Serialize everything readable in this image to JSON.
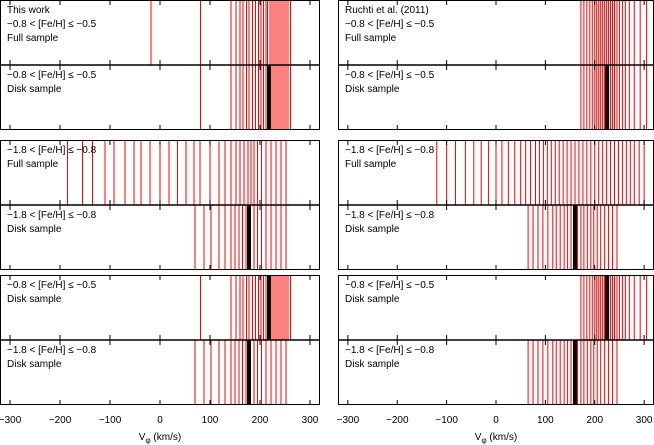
{
  "colors": {
    "obs_line": "#ff0000",
    "mean_line": "#000000",
    "frame": "#000000"
  },
  "x_ticks": [
    -300,
    -200,
    -100,
    0,
    100,
    200,
    300
  ],
  "x_axis_label_main": "V",
  "x_axis_label_sub": "φ",
  "x_axis_label_unit": " (km/s)",
  "chart_data": [
    {
      "type": "rug",
      "column": "left",
      "row": 1,
      "xlim": [
        -320,
        320
      ],
      "texts": [
        "This work",
        "−0.8 < [Fe/H] ≤ −0.5",
        "Full sample"
      ],
      "mean": null,
      "values": [
        -18,
        81,
        142,
        152,
        160,
        166,
        173,
        178,
        185,
        191,
        197,
        202,
        207,
        212,
        215,
        220,
        224,
        228,
        232,
        236,
        240,
        244,
        248,
        252,
        256,
        261
      ]
    },
    {
      "type": "rug",
      "column": "left",
      "row": 2,
      "xlim": [
        -320,
        320
      ],
      "texts": [
        "−0.8 < [Fe/H] ≤ −0.5",
        "Disk sample"
      ],
      "mean": 218,
      "values": [
        81,
        142,
        152,
        160,
        166,
        173,
        178,
        185,
        191,
        197,
        202,
        207,
        212,
        215,
        220,
        224,
        228,
        232,
        236,
        240,
        244,
        248,
        252,
        256,
        261
      ]
    },
    {
      "type": "rug",
      "column": "left",
      "row": 3,
      "xlim": [
        -320,
        320
      ],
      "texts": [
        "−1.8 < [Fe/H] ≤ −0.8",
        "Full sample"
      ],
      "mean": null,
      "values": [
        -185,
        -155,
        -135,
        -110,
        -92,
        -70,
        -52,
        -38,
        -20,
        0,
        18,
        35,
        52,
        68,
        80,
        100,
        118,
        130,
        142,
        152,
        160,
        168,
        176,
        182,
        188,
        195,
        203,
        212,
        222,
        232,
        242,
        252
      ]
    },
    {
      "type": "rug",
      "column": "left",
      "row": 4,
      "xlim": [
        -320,
        320
      ],
      "texts": [
        "−1.8 < [Fe/H] ≤ −0.8",
        "Disk sample"
      ],
      "mean": 178,
      "values": [
        70,
        88,
        102,
        118,
        130,
        142,
        150,
        158,
        165,
        172,
        180,
        188,
        195,
        203,
        212,
        222,
        232,
        242,
        252
      ]
    },
    {
      "type": "rug",
      "column": "left",
      "row": 5,
      "xlim": [
        -320,
        320
      ],
      "texts": [
        "−0.8 < [Fe/H] ≤ −0.5",
        "Disk sample"
      ],
      "mean": 218,
      "values": [
        81,
        142,
        152,
        160,
        166,
        173,
        178,
        185,
        191,
        197,
        202,
        207,
        212,
        215,
        220,
        224,
        228,
        232,
        236,
        240,
        244,
        248,
        252,
        256,
        261
      ]
    },
    {
      "type": "rug",
      "column": "left",
      "row": 6,
      "xlim": [
        -320,
        320
      ],
      "texts": [
        "−1.8 < [Fe/H] ≤ −0.8",
        "Disk sample"
      ],
      "mean": 178,
      "values": [
        70,
        88,
        102,
        118,
        130,
        142,
        150,
        158,
        165,
        172,
        180,
        188,
        195,
        203,
        212,
        222,
        232,
        242,
        252
      ]
    },
    {
      "type": "rug",
      "column": "right",
      "row": 1,
      "xlim": [
        -320,
        320
      ],
      "texts": [
        "Ruchti et al. (2011)",
        "−0.8 < [Fe/H] ≤ −0.5",
        "Full sample"
      ],
      "mean": null,
      "values": [
        172,
        178,
        184,
        190,
        195,
        200,
        204,
        208,
        212,
        216,
        220,
        224,
        228,
        232,
        236,
        240,
        245,
        250,
        256,
        262,
        270,
        280,
        292,
        305
      ]
    },
    {
      "type": "rug",
      "column": "right",
      "row": 2,
      "xlim": [
        -320,
        320
      ],
      "texts": [
        "−0.8 < [Fe/H] ≤ −0.5",
        "Disk sample"
      ],
      "mean": 225,
      "values": [
        172,
        178,
        184,
        190,
        195,
        200,
        204,
        208,
        212,
        216,
        220,
        224,
        228,
        232,
        236,
        240,
        245,
        250,
        256,
        262,
        270,
        280,
        292,
        305
      ]
    },
    {
      "type": "rug",
      "column": "right",
      "row": 3,
      "xlim": [
        -320,
        320
      ],
      "texts": [
        "−1.8 < [Fe/H] ≤ −0.8",
        "Full sample"
      ],
      "mean": null,
      "values": [
        -120,
        -100,
        -82,
        -62,
        -45,
        -30,
        -15,
        0,
        12,
        25,
        38,
        50,
        60,
        70,
        80,
        88,
        96,
        104,
        112,
        120,
        128,
        136,
        144,
        152,
        160,
        168,
        176,
        184,
        192,
        200,
        208,
        216,
        224,
        232,
        240,
        248,
        256,
        264,
        272,
        280,
        290,
        300
      ]
    },
    {
      "type": "rug",
      "column": "right",
      "row": 4,
      "xlim": [
        -320,
        320
      ],
      "texts": [
        "−1.8 < [Fe/H] ≤ −0.8",
        "Disk sample"
      ],
      "mean": 160,
      "values": [
        65,
        75,
        85,
        95,
        105,
        115,
        122,
        130,
        138,
        145,
        152,
        158,
        165,
        172,
        178,
        185,
        192,
        198,
        205,
        212,
        220,
        228,
        236,
        245
      ]
    },
    {
      "type": "rug",
      "column": "right",
      "row": 5,
      "xlim": [
        -320,
        320
      ],
      "texts": [
        "−0.8 < [Fe/H] ≤ −0.5",
        "Disk sample"
      ],
      "mean": 225,
      "values": [
        172,
        178,
        184,
        190,
        195,
        200,
        204,
        208,
        212,
        216,
        220,
        224,
        228,
        232,
        236,
        240,
        245,
        250,
        256,
        262,
        270,
        280,
        292,
        305
      ]
    },
    {
      "type": "rug",
      "column": "right",
      "row": 6,
      "xlim": [
        -320,
        320
      ],
      "texts": [
        "−1.8 < [Fe/H] ≤ −0.8",
        "Disk sample"
      ],
      "mean": 160,
      "values": [
        65,
        75,
        85,
        95,
        105,
        115,
        122,
        130,
        138,
        145,
        152,
        158,
        165,
        172,
        178,
        185,
        192,
        198,
        205,
        212,
        220,
        228,
        236,
        245
      ]
    }
  ]
}
